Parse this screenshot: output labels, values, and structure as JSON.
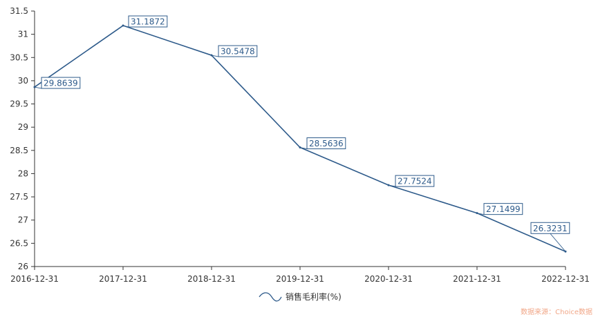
{
  "chart_data": {
    "type": "line",
    "categories": [
      "2016-12-31",
      "2017-12-31",
      "2018-12-31",
      "2019-12-31",
      "2020-12-31",
      "2021-12-31",
      "2022-12-31"
    ],
    "series": [
      {
        "name": "销售毛利率(%)",
        "values": [
          29.8639,
          31.1872,
          30.5478,
          28.5636,
          27.7524,
          27.1499,
          26.3231
        ],
        "labels": [
          "29.8639",
          "31.1872",
          "30.5478",
          "28.5636",
          "27.7524",
          "27.1499",
          "26.3231"
        ]
      }
    ],
    "ylim": [
      26,
      31.5
    ],
    "y_ticks": [
      "26",
      "26.5",
      "27",
      "27.5",
      "28",
      "28.5",
      "29",
      "29.5",
      "30",
      "30.5",
      "31",
      "31.5"
    ],
    "grid": false,
    "legend": "bottom-center",
    "line_color": "#2d5a8a",
    "title": "",
    "xlabel": "",
    "ylabel": ""
  },
  "source_text": "数据来源：Choice数据"
}
